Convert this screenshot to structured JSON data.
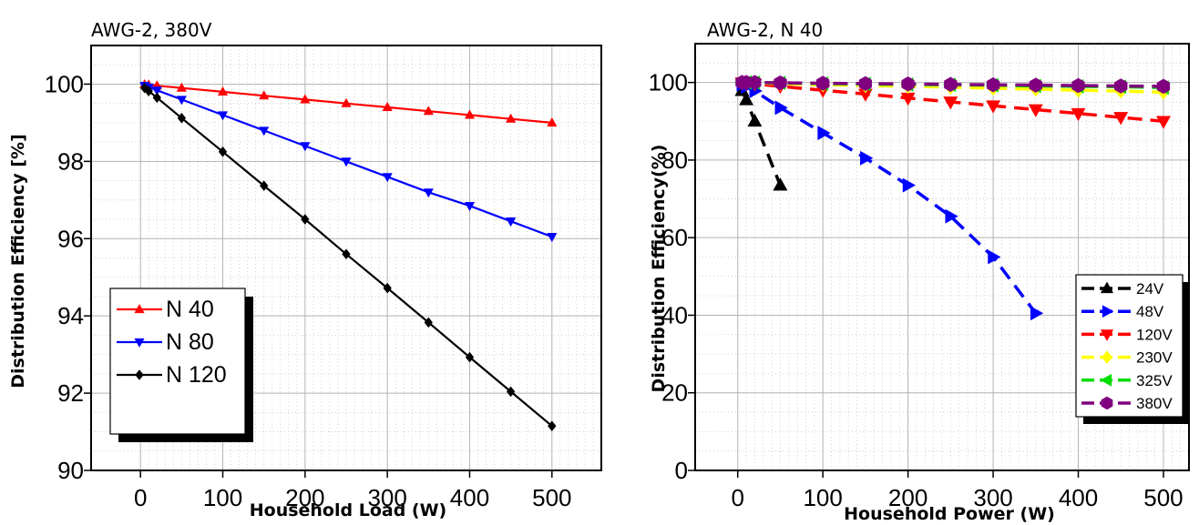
{
  "chart_data": [
    {
      "type": "line",
      "title": "AWG-2, 380V",
      "xlabel": "Household Load (W)",
      "ylabel": "Distribution Efficiency [%]",
      "xlim": [
        -60,
        560
      ],
      "ylim": [
        90,
        101
      ],
      "xticks": [
        0,
        100,
        200,
        300,
        400,
        500
      ],
      "yticks": [
        90,
        92,
        94,
        96,
        98,
        100
      ],
      "grid": true,
      "legend_position": "bottom-left",
      "series": [
        {
          "name": "N 40",
          "color": "#ff0000",
          "marker": "triangle-up",
          "x": [
            5,
            10,
            20,
            50,
            100,
            150,
            200,
            250,
            300,
            350,
            400,
            450,
            500
          ],
          "y": [
            99.99,
            99.98,
            99.96,
            99.9,
            99.8,
            99.7,
            99.6,
            99.5,
            99.4,
            99.3,
            99.2,
            99.1,
            99.0
          ]
        },
        {
          "name": "N 80",
          "color": "#0000ff",
          "marker": "triangle-down",
          "x": [
            5,
            10,
            20,
            50,
            100,
            150,
            200,
            250,
            300,
            350,
            400,
            450,
            500
          ],
          "y": [
            99.96,
            99.92,
            99.84,
            99.6,
            99.2,
            98.8,
            98.4,
            98.0,
            97.6,
            97.2,
            96.85,
            96.45,
            96.05
          ]
        },
        {
          "name": "N 120",
          "color": "#000000",
          "marker": "diamond",
          "x": [
            5,
            10,
            20,
            50,
            100,
            150,
            200,
            250,
            300,
            350,
            400,
            450,
            500
          ],
          "y": [
            99.9,
            99.82,
            99.65,
            99.12,
            98.25,
            97.37,
            96.5,
            95.6,
            94.72,
            93.83,
            92.93,
            92.04,
            91.15
          ]
        }
      ]
    },
    {
      "type": "line",
      "title": "AWG-2, N 40",
      "xlabel": "Household Power (W)",
      "ylabel": "Distribution Efficiency(%)",
      "xlim": [
        -50,
        530
      ],
      "ylim": [
        0,
        110
      ],
      "xticks": [
        0,
        100,
        200,
        300,
        400,
        500
      ],
      "yticks": [
        0,
        20,
        40,
        60,
        80,
        100
      ],
      "grid": true,
      "legend_position": "bottom-right",
      "series": [
        {
          "name": "24V",
          "color": "#000000",
          "marker": "triangle-up",
          "x": [
            5,
            10,
            20,
            50
          ],
          "y": [
            97.9,
            95.5,
            90.0,
            73.5
          ]
        },
        {
          "name": "48V",
          "color": "#0000ff",
          "marker": "triangle-right",
          "x": [
            5,
            10,
            20,
            50,
            100,
            150,
            200,
            250,
            300,
            350
          ],
          "y": [
            99.5,
            98.9,
            97.8,
            93.5,
            87.0,
            80.5,
            73.5,
            65.5,
            55.0,
            40.5
          ]
        },
        {
          "name": "120V",
          "color": "#ff0000",
          "marker": "triangle-down",
          "x": [
            5,
            10,
            20,
            50,
            100,
            150,
            200,
            250,
            300,
            350,
            400,
            450,
            500
          ],
          "y": [
            99.9,
            99.8,
            99.6,
            99.0,
            98.0,
            97.0,
            96.0,
            95.0,
            94.0,
            93.0,
            92.0,
            91.0,
            90.0
          ]
        },
        {
          "name": "230V",
          "color": "#ffff00",
          "marker": "diamond",
          "x": [
            5,
            10,
            20,
            50,
            100,
            150,
            200,
            250,
            300,
            350,
            400,
            450,
            500
          ],
          "y": [
            100,
            99.95,
            99.9,
            99.7,
            99.4,
            99.2,
            99.0,
            98.8,
            98.5,
            98.3,
            98.0,
            97.8,
            97.5
          ]
        },
        {
          "name": "325V",
          "color": "#00dd00",
          "marker": "triangle-left",
          "x": [
            5,
            10,
            20,
            50,
            100,
            150,
            200,
            250,
            300,
            350,
            400,
            450,
            500
          ],
          "y": [
            100,
            100,
            99.95,
            99.9,
            99.7,
            99.6,
            99.5,
            99.4,
            99.3,
            99.1,
            99.0,
            98.9,
            98.7
          ]
        },
        {
          "name": "380V",
          "color": "#800080",
          "marker": "hexagon",
          "x": [
            5,
            10,
            20,
            50,
            100,
            150,
            200,
            250,
            300,
            350,
            400,
            450,
            500
          ],
          "y": [
            100,
            100,
            100,
            99.9,
            99.8,
            99.7,
            99.6,
            99.5,
            99.4,
            99.3,
            99.2,
            99.1,
            99.0
          ]
        }
      ]
    }
  ]
}
